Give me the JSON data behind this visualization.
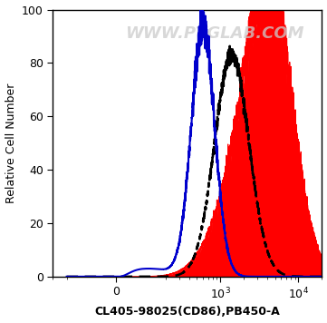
{
  "title": "",
  "xlabel": "CL405-98025(CD86),PB450-A",
  "ylabel": "Relative Cell Number",
  "watermark": "WWW.PTGLAB.COM",
  "ylim": [
    0,
    100
  ],
  "yticks": [
    0,
    20,
    40,
    60,
    80,
    100
  ],
  "blue_color": "#0000cc",
  "dashed_color": "#000000",
  "red_color": "#ff0000",
  "bg_color": "#ffffff",
  "spine_color": "#000000",
  "fontsize_label": 9,
  "fontsize_tick": 9,
  "fontsize_watermark": 13
}
